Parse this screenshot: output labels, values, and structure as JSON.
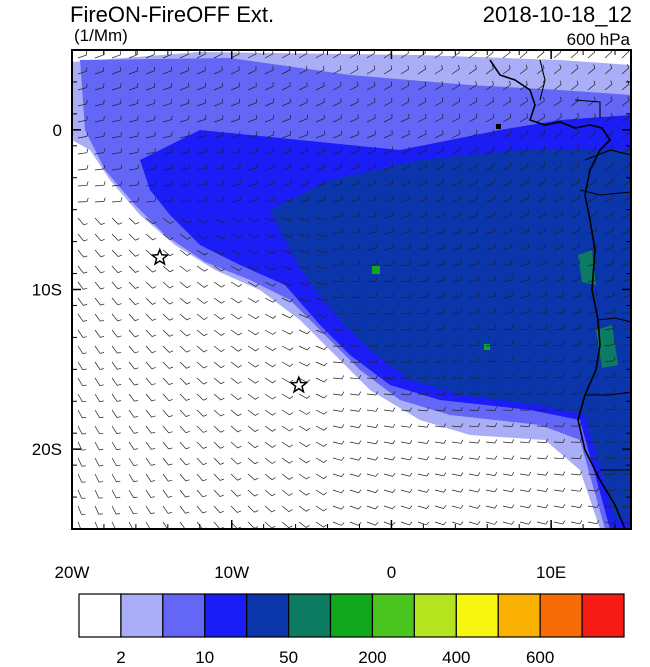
{
  "header": {
    "title": "FireON-FireOFF Ext.",
    "units": "(1/Mm)",
    "datetime": "2018-10-18_12",
    "level": "600 hPa"
  },
  "axes": {
    "x_ticks": [
      {
        "label": "20W",
        "value": -20
      },
      {
        "label": "10W",
        "value": -10
      },
      {
        "label": "0",
        "value": 0
      },
      {
        "label": "10E",
        "value": 10
      }
    ],
    "y_ticks": [
      {
        "label": "0",
        "value": 0
      },
      {
        "label": "10S",
        "value": -10
      },
      {
        "label": "20S",
        "value": -20
      }
    ],
    "lon_range": [
      -20,
      15
    ],
    "lat_range": [
      -25,
      5
    ]
  },
  "markers": [
    {
      "lon": -14.5,
      "lat": -8,
      "symbol": "star"
    },
    {
      "lon": -5.8,
      "lat": -16,
      "symbol": "star"
    }
  ],
  "colorbar": {
    "colors": [
      "#ffffff",
      "#a9aef7",
      "#6467f6",
      "#1b1df6",
      "#0b36ab",
      "#0d7a62",
      "#12a81e",
      "#4bc520",
      "#b3e41e",
      "#f6f60f",
      "#f9b000",
      "#f76c06",
      "#f61b14"
    ],
    "labels": [
      {
        "text": "2",
        "after_index": 0
      },
      {
        "text": "10",
        "after_index": 2
      },
      {
        "text": "50",
        "after_index": 4
      },
      {
        "text": "200",
        "after_index": 6
      },
      {
        "text": "400",
        "after_index": 8
      },
      {
        "text": "600",
        "after_index": 10
      }
    ]
  }
}
